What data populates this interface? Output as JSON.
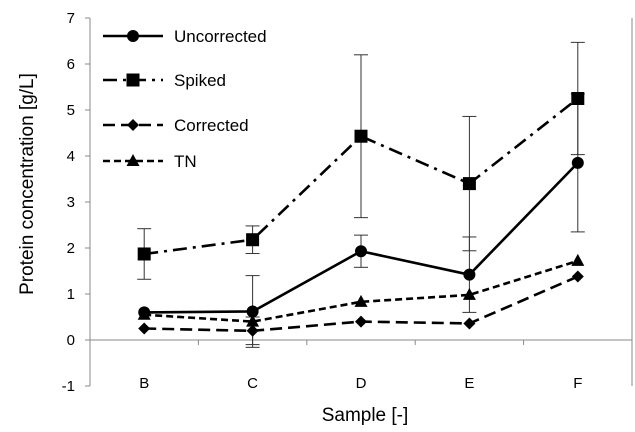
{
  "chart_data": {
    "type": "line",
    "title": "",
    "xlabel": "Sample [-]",
    "ylabel": "Protein concentration [g/L]",
    "ylim": [
      -1,
      7
    ],
    "yticks": [
      -1,
      0,
      1,
      2,
      3,
      4,
      5,
      6,
      7
    ],
    "categories": [
      "B",
      "C",
      "D",
      "E",
      "F"
    ],
    "grid": false,
    "legend_position": "top-left",
    "series": [
      {
        "name": "Uncorrected",
        "line_style": "solid",
        "marker": "circle",
        "values": [
          0.6,
          0.62,
          1.93,
          1.42,
          3.85
        ],
        "error": [
          null,
          0.78,
          0.35,
          0.82,
          1.5
        ]
      },
      {
        "name": "Spiked",
        "line_style": "dash-dot",
        "marker": "square",
        "values": [
          1.87,
          2.18,
          4.43,
          3.4,
          5.25
        ],
        "error": [
          0.55,
          0.3,
          1.77,
          1.46,
          1.22
        ]
      },
      {
        "name": "Corrected",
        "line_style": "long-dash",
        "marker": "diamond",
        "values": [
          0.25,
          0.2,
          0.4,
          0.36,
          1.38
        ],
        "error": [
          null,
          0.3,
          null,
          null,
          null
        ]
      },
      {
        "name": "TN",
        "line_style": "short-dash",
        "marker": "triangle",
        "values": [
          0.55,
          0.4,
          0.83,
          0.98,
          1.72
        ],
        "error": [
          null,
          null,
          null,
          null,
          null
        ]
      }
    ]
  }
}
